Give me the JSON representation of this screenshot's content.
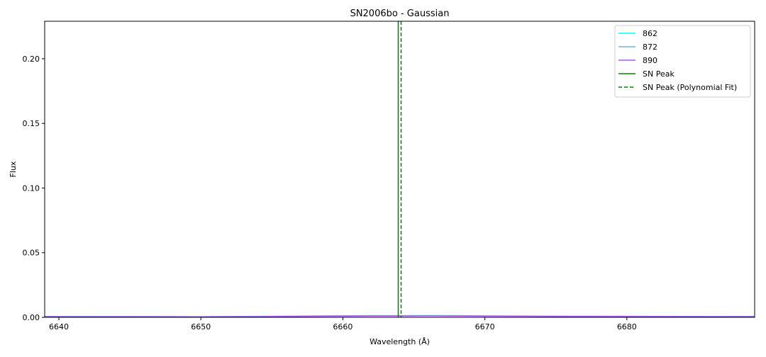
{
  "chart_data": {
    "type": "line",
    "title": "SN2006bo - Gaussian",
    "xlabel": "Wavelength (Å)",
    "ylabel": "Flux",
    "xlim": [
      6639,
      6689
    ],
    "ylim": [
      0,
      0.229
    ],
    "xticks": [
      6640,
      6650,
      6660,
      6670,
      6680
    ],
    "yticks": [
      0.0,
      0.05,
      0.1,
      0.15,
      0.2
    ],
    "ytick_labels": [
      "0.00",
      "0.05",
      "0.10",
      "0.15",
      "0.20"
    ],
    "grid": false,
    "legend_position": "top-right",
    "series": [
      {
        "name": "862",
        "color": "#00ffff",
        "x": [
          6639,
          6645,
          6650,
          6655,
          6660,
          6662,
          6664,
          6666,
          6668,
          6670,
          6675,
          6680,
          6685,
          6689
        ],
        "y": [
          0.0006,
          0.0005,
          0.0004,
          0.0007,
          0.0011,
          0.0012,
          0.0012,
          0.0013,
          0.0012,
          0.001,
          0.0008,
          0.0007,
          0.0006,
          0.0006
        ]
      },
      {
        "name": "872",
        "color": "#6cb9d8",
        "x": [
          6639,
          6645,
          6650,
          6655,
          6660,
          6662,
          6664,
          6666,
          6668,
          6670,
          6675,
          6680,
          6685,
          6689
        ],
        "y": [
          0.0007,
          0.0006,
          0.0005,
          0.0008,
          0.0012,
          0.0013,
          0.0013,
          0.0014,
          0.0013,
          0.0011,
          0.0009,
          0.0008,
          0.0007,
          0.0007
        ]
      },
      {
        "name": "890",
        "color": "#a855f7",
        "x": [
          6639,
          6645,
          6650,
          6655,
          6660,
          6662,
          6664,
          6666,
          6668,
          6670,
          6675,
          6680,
          6685,
          6689
        ],
        "y": [
          0.0005,
          0.0005,
          0.0004,
          0.0006,
          0.0009,
          0.001,
          0.001,
          0.0011,
          0.001,
          0.0009,
          0.0007,
          0.0006,
          0.0006,
          0.0005
        ]
      }
    ],
    "vlines": [
      {
        "name": "SN Peak",
        "x": 6663.9,
        "color": "#008000",
        "style": "solid"
      },
      {
        "name": "SN Peak (Polynomial Fit)",
        "x": 6664.1,
        "color": "#008000",
        "style": "dashed"
      }
    ]
  }
}
